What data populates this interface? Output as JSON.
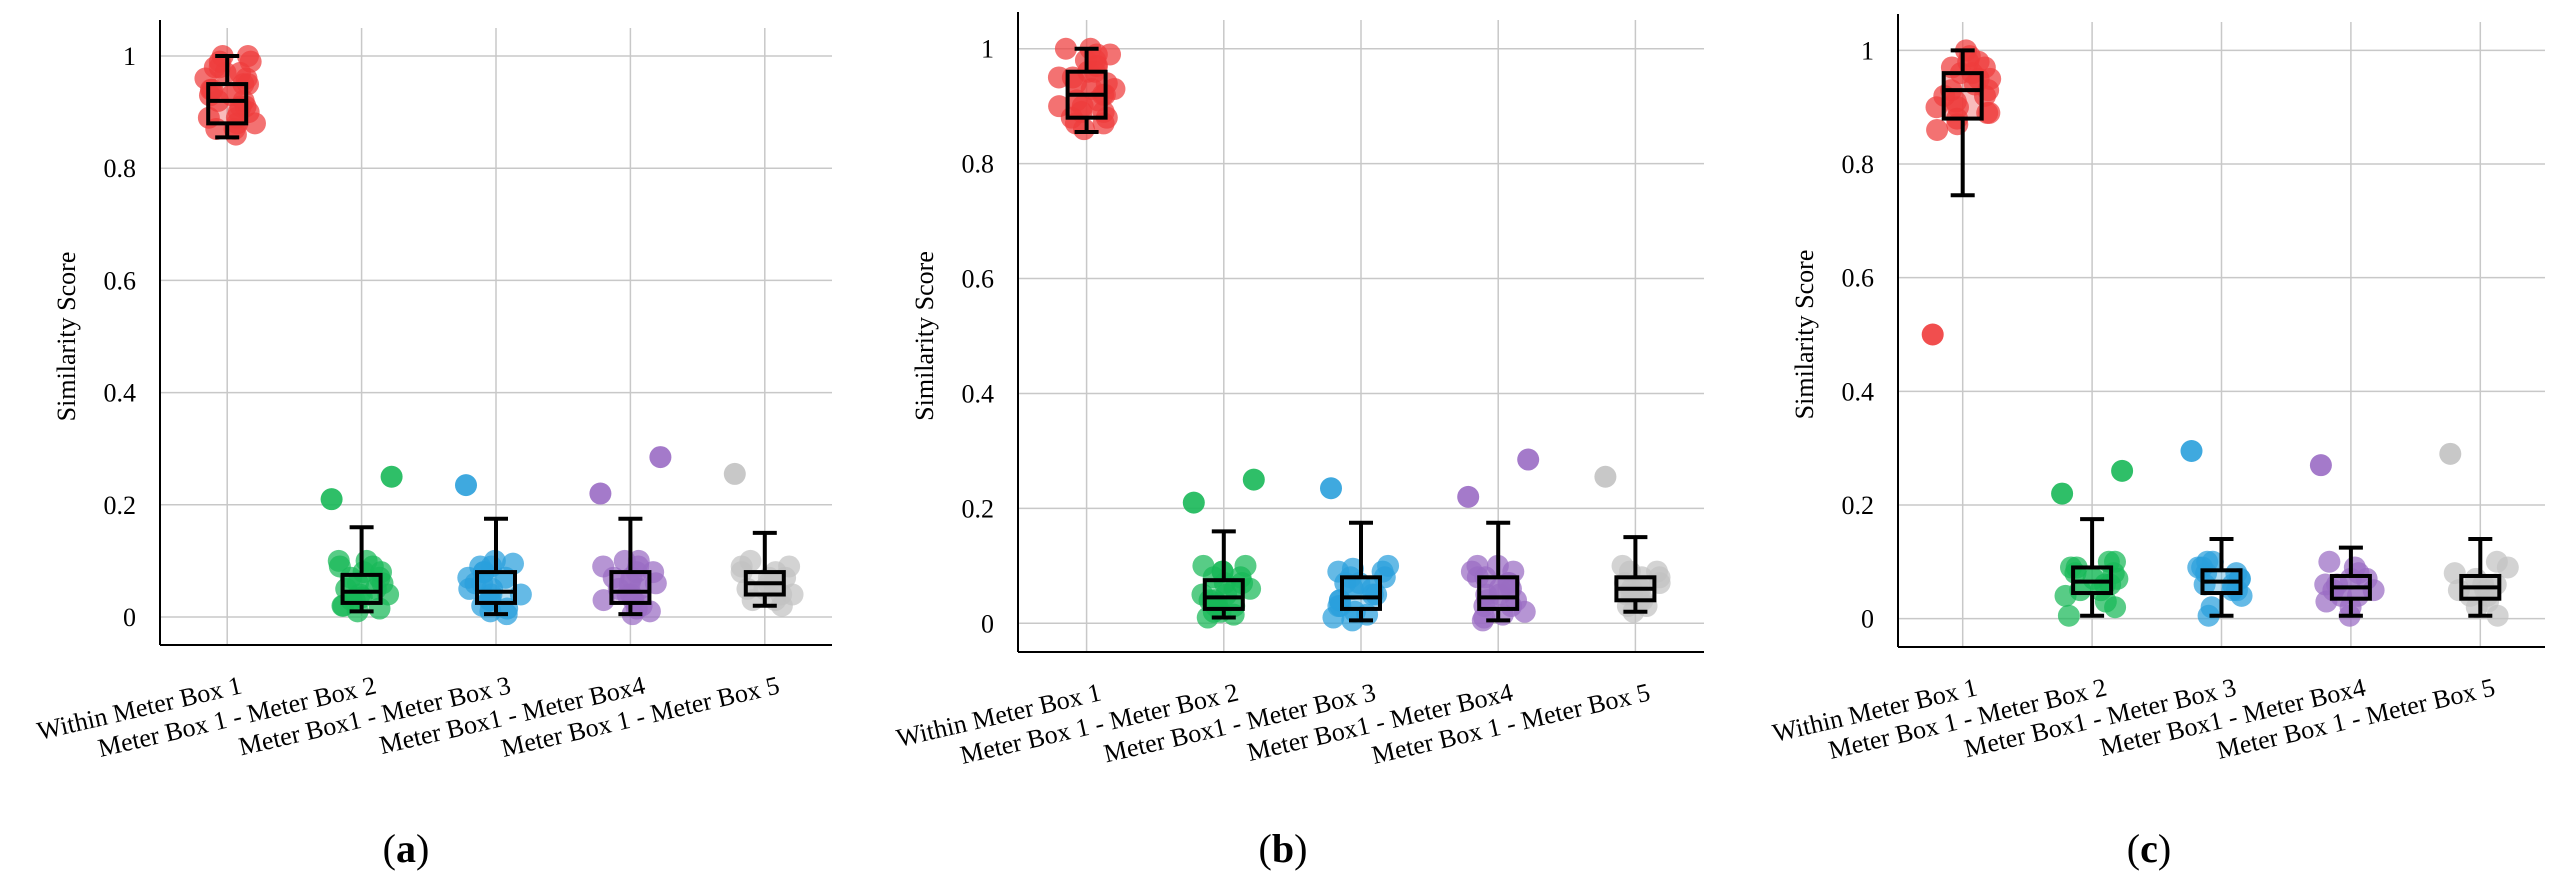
{
  "panel_labels": [
    "(a)",
    "(b)",
    "(c)"
  ],
  "colors": {
    "within": "#ef3b3b",
    "box2": "#18b858",
    "box3": "#2aa0dc",
    "box4": "#9a6cc4",
    "box5": "#c2c2c2",
    "box_line": "#000000",
    "grid": "#c8c8c8"
  },
  "chart_data": [
    {
      "type": "box",
      "panel": "(a)",
      "title": "",
      "xlabel": "",
      "ylabel": "Similarity Score",
      "ylim": [
        -0.05,
        1.05
      ],
      "yticks": [
        0,
        0.2,
        0.4,
        0.6,
        0.8,
        1
      ],
      "ytick_labels": [
        "0",
        "0.2",
        "0.4",
        "0.6",
        "0.8",
        "1"
      ],
      "grid": true,
      "categories": [
        "Within Meter Box 1",
        "Meter Box 1 - Meter Box 2",
        "Meter Box1 - Meter Box 3",
        "Meter Box1 - Meter Box4",
        "Meter Box 1 - Meter Box 5"
      ],
      "boxes": [
        {
          "whisker_low": 0.855,
          "q1": 0.88,
          "median": 0.92,
          "q3": 0.95,
          "whisker_high": 1.0,
          "points": [
            0.86,
            0.87,
            0.87,
            0.88,
            0.88,
            0.89,
            0.89,
            0.9,
            0.9,
            0.91,
            0.91,
            0.92,
            0.92,
            0.93,
            0.93,
            0.94,
            0.94,
            0.95,
            0.95,
            0.96,
            0.96,
            0.97,
            0.97,
            0.98,
            0.98,
            0.99,
            0.99,
            1.0,
            1.0
          ],
          "outliers": []
        },
        {
          "whisker_low": 0.01,
          "q1": 0.025,
          "median": 0.045,
          "q3": 0.075,
          "whisker_high": 0.16,
          "points": [
            0.01,
            0.015,
            0.02,
            0.02,
            0.03,
            0.03,
            0.035,
            0.04,
            0.04,
            0.05,
            0.05,
            0.06,
            0.06,
            0.07,
            0.07,
            0.08,
            0.08,
            0.09,
            0.09,
            0.1,
            0.1
          ],
          "outliers": [
            0.21,
            0.25
          ]
        },
        {
          "whisker_low": 0.005,
          "q1": 0.025,
          "median": 0.045,
          "q3": 0.08,
          "whisker_high": 0.175,
          "points": [
            0.005,
            0.01,
            0.015,
            0.02,
            0.03,
            0.03,
            0.04,
            0.04,
            0.05,
            0.05,
            0.06,
            0.06,
            0.07,
            0.07,
            0.08,
            0.08,
            0.09,
            0.09,
            0.095,
            0.1
          ],
          "outliers": [
            0.235
          ]
        },
        {
          "whisker_low": 0.005,
          "q1": 0.025,
          "median": 0.045,
          "q3": 0.08,
          "whisker_high": 0.175,
          "points": [
            0.005,
            0.01,
            0.015,
            0.02,
            0.03,
            0.03,
            0.04,
            0.04,
            0.05,
            0.05,
            0.06,
            0.06,
            0.07,
            0.07,
            0.08,
            0.08,
            0.09,
            0.09,
            0.1,
            0.1
          ],
          "outliers": [
            0.22,
            0.285
          ]
        },
        {
          "whisker_low": 0.02,
          "q1": 0.04,
          "median": 0.06,
          "q3": 0.08,
          "whisker_high": 0.15,
          "points": [
            0.02,
            0.03,
            0.03,
            0.04,
            0.04,
            0.05,
            0.05,
            0.06,
            0.06,
            0.07,
            0.07,
            0.08,
            0.08,
            0.09,
            0.09,
            0.1
          ],
          "outliers": [
            0.255
          ]
        }
      ]
    },
    {
      "type": "box",
      "panel": "(b)",
      "title": "",
      "xlabel": "",
      "ylabel": "Similarity Score",
      "ylim": [
        -0.05,
        1.05
      ],
      "yticks": [
        0,
        0.2,
        0.4,
        0.6,
        0.8,
        1
      ],
      "ytick_labels": [
        "0",
        "0.2",
        "0.4",
        "0.6",
        "0.8",
        "1"
      ],
      "grid": true,
      "categories": [
        "Within Meter Box 1",
        "Meter Box 1 - Meter Box 2",
        "Meter Box1 - Meter Box 3",
        "Meter Box1 - Meter Box4",
        "Meter Box 1 - Meter Box 5"
      ],
      "boxes": [
        {
          "whisker_low": 0.855,
          "q1": 0.88,
          "median": 0.92,
          "q3": 0.96,
          "whisker_high": 1.0,
          "points": [
            0.86,
            0.87,
            0.87,
            0.88,
            0.88,
            0.89,
            0.89,
            0.9,
            0.9,
            0.91,
            0.91,
            0.92,
            0.92,
            0.93,
            0.93,
            0.94,
            0.94,
            0.95,
            0.95,
            0.96,
            0.96,
            0.97,
            0.97,
            0.98,
            0.98,
            0.99,
            0.99,
            1.0,
            1.0
          ],
          "outliers": []
        },
        {
          "whisker_low": 0.01,
          "q1": 0.025,
          "median": 0.045,
          "q3": 0.075,
          "whisker_high": 0.16,
          "points": [
            0.01,
            0.015,
            0.02,
            0.02,
            0.03,
            0.03,
            0.035,
            0.04,
            0.04,
            0.05,
            0.05,
            0.06,
            0.06,
            0.07,
            0.07,
            0.08,
            0.08,
            0.09,
            0.09,
            0.1,
            0.1
          ],
          "outliers": [
            0.21,
            0.25
          ]
        },
        {
          "whisker_low": 0.005,
          "q1": 0.025,
          "median": 0.045,
          "q3": 0.08,
          "whisker_high": 0.175,
          "points": [
            0.005,
            0.01,
            0.015,
            0.02,
            0.03,
            0.03,
            0.04,
            0.04,
            0.05,
            0.05,
            0.06,
            0.06,
            0.07,
            0.07,
            0.08,
            0.08,
            0.09,
            0.09,
            0.095,
            0.1
          ],
          "outliers": [
            0.235
          ]
        },
        {
          "whisker_low": 0.005,
          "q1": 0.025,
          "median": 0.045,
          "q3": 0.08,
          "whisker_high": 0.175,
          "points": [
            0.005,
            0.01,
            0.015,
            0.02,
            0.03,
            0.03,
            0.04,
            0.04,
            0.05,
            0.05,
            0.06,
            0.06,
            0.07,
            0.07,
            0.08,
            0.08,
            0.09,
            0.09,
            0.1,
            0.1
          ],
          "outliers": [
            0.22,
            0.285
          ]
        },
        {
          "whisker_low": 0.02,
          "q1": 0.04,
          "median": 0.06,
          "q3": 0.08,
          "whisker_high": 0.15,
          "points": [
            0.02,
            0.03,
            0.03,
            0.04,
            0.04,
            0.05,
            0.05,
            0.06,
            0.06,
            0.07,
            0.07,
            0.08,
            0.08,
            0.09,
            0.09,
            0.1
          ],
          "outliers": [
            0.255
          ]
        }
      ]
    },
    {
      "type": "box",
      "panel": "(c)",
      "title": "",
      "xlabel": "",
      "ylabel": "Similarity Score",
      "ylim": [
        -0.05,
        1.05
      ],
      "yticks": [
        0,
        0.2,
        0.4,
        0.6,
        0.8,
        1
      ],
      "ytick_labels": [
        "0",
        "0.2",
        "0.4",
        "0.6",
        "0.8",
        "1"
      ],
      "grid": true,
      "categories": [
        "Within Meter Box 1",
        "Meter Box 1 - Meter Box 2",
        "Meter Box1 - Meter Box 3",
        "Meter Box1 - Meter Box4",
        "Meter Box 1 - Meter Box 5"
      ],
      "boxes": [
        {
          "whisker_low": 0.745,
          "q1": 0.88,
          "median": 0.93,
          "q3": 0.96,
          "whisker_high": 1.0,
          "points": [
            0.86,
            0.87,
            0.88,
            0.89,
            0.89,
            0.9,
            0.9,
            0.91,
            0.92,
            0.92,
            0.93,
            0.93,
            0.94,
            0.95,
            0.95,
            0.96,
            0.96,
            0.97,
            0.97,
            0.98,
            0.98,
            0.99,
            1.0
          ],
          "outliers": [
            0.5
          ]
        },
        {
          "whisker_low": 0.005,
          "q1": 0.045,
          "median": 0.065,
          "q3": 0.09,
          "whisker_high": 0.175,
          "points": [
            0.005,
            0.02,
            0.03,
            0.04,
            0.05,
            0.05,
            0.06,
            0.06,
            0.07,
            0.07,
            0.08,
            0.08,
            0.09,
            0.09,
            0.1,
            0.1
          ],
          "outliers": [
            0.22,
            0.26
          ]
        },
        {
          "whisker_low": 0.005,
          "q1": 0.045,
          "median": 0.065,
          "q3": 0.085,
          "whisker_high": 0.14,
          "points": [
            0.005,
            0.02,
            0.04,
            0.05,
            0.05,
            0.06,
            0.06,
            0.07,
            0.07,
            0.08,
            0.08,
            0.09,
            0.09,
            0.1,
            0.1
          ],
          "outliers": [
            0.295
          ]
        },
        {
          "whisker_low": 0.005,
          "q1": 0.035,
          "median": 0.055,
          "q3": 0.075,
          "whisker_high": 0.125,
          "points": [
            0.005,
            0.02,
            0.03,
            0.04,
            0.04,
            0.05,
            0.05,
            0.06,
            0.06,
            0.07,
            0.07,
            0.08,
            0.09,
            0.1
          ],
          "outliers": [
            0.27
          ]
        },
        {
          "whisker_low": 0.005,
          "q1": 0.035,
          "median": 0.055,
          "q3": 0.075,
          "whisker_high": 0.14,
          "points": [
            0.005,
            0.02,
            0.03,
            0.04,
            0.04,
            0.05,
            0.05,
            0.06,
            0.06,
            0.07,
            0.08,
            0.09,
            0.1
          ],
          "outliers": [
            0.29
          ]
        }
      ]
    }
  ]
}
